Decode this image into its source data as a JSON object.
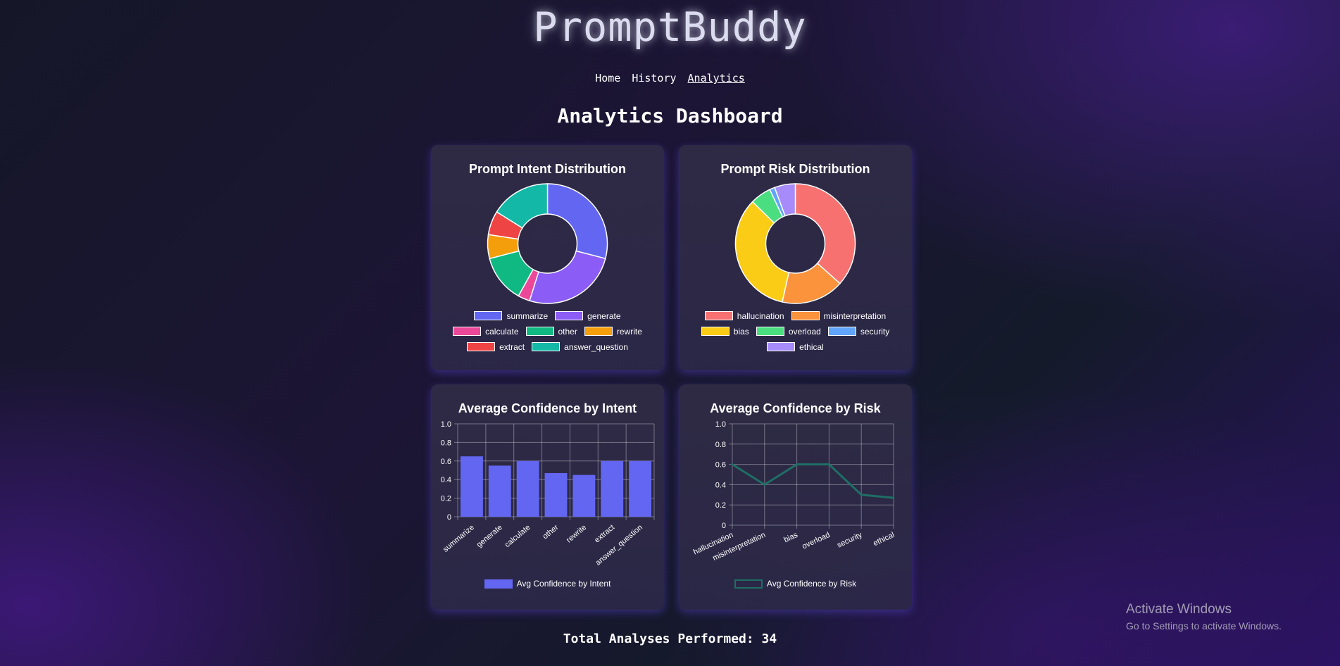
{
  "app": {
    "title": "PromptBuddy"
  },
  "nav": [
    {
      "label": "Home",
      "active": false
    },
    {
      "label": "History",
      "active": false
    },
    {
      "label": "Analytics",
      "active": true
    }
  ],
  "page": {
    "title": "Analytics Dashboard"
  },
  "footer": {
    "total_label": "Total Analyses Performed: 34"
  },
  "os_watermark": {
    "line1": "Activate Windows",
    "line2": "Go to Settings to activate Windows."
  },
  "chart_data": [
    {
      "id": "intent_dist",
      "type": "pie",
      "variant": "doughnut",
      "title": "Prompt Intent Distribution",
      "labels": [
        "summarize",
        "generate",
        "calculate",
        "other",
        "rewrite",
        "extract",
        "answer_question"
      ],
      "values": [
        9,
        8,
        1,
        4,
        2,
        2,
        5
      ],
      "colors": [
        "#6366f1",
        "#8b5cf6",
        "#ec4899",
        "#10b981",
        "#f59e0b",
        "#ef4444",
        "#14b8a6"
      ],
      "legend": "bottom"
    },
    {
      "id": "risk_dist",
      "type": "pie",
      "variant": "doughnut",
      "title": "Prompt Risk Distribution",
      "labels": [
        "hallucination",
        "misinterpretation",
        "bias",
        "overload",
        "security",
        "ethical"
      ],
      "values": [
        13,
        6,
        12,
        2,
        0.5,
        2
      ],
      "colors": [
        "#f87171",
        "#fb923c",
        "#facc15",
        "#4ade80",
        "#60a5fa",
        "#a78bfa"
      ],
      "legend": "bottom"
    },
    {
      "id": "intent_conf",
      "type": "bar",
      "title": "Average Confidence by Intent",
      "categories": [
        "summarize",
        "generate",
        "calculate",
        "other",
        "rewrite",
        "extract",
        "answer_question"
      ],
      "series": [
        {
          "name": "Avg Confidence by Intent",
          "values": [
            0.65,
            0.55,
            0.6,
            0.47,
            0.45,
            0.6,
            0.6
          ],
          "color": "#6366f1"
        }
      ],
      "ylim": [
        0,
        1
      ],
      "yticks": [
        "0",
        "0.2",
        "0.4",
        "0.6",
        "0.8",
        "1.0"
      ],
      "grid": true,
      "legend": "bottom"
    },
    {
      "id": "risk_conf",
      "type": "line",
      "title": "Average Confidence by Risk",
      "categories": [
        "hallucination",
        "misinterpretation",
        "bias",
        "overload",
        "security",
        "ethical"
      ],
      "series": [
        {
          "name": "Avg Confidence by Risk",
          "values": [
            0.6,
            0.4,
            0.6,
            0.6,
            0.3,
            0.27
          ],
          "color": "#1f6e66"
        }
      ],
      "ylim": [
        0,
        1
      ],
      "yticks": [
        "0",
        "0.2",
        "0.4",
        "0.6",
        "0.8",
        "1.0"
      ],
      "grid": true,
      "legend": "bottom"
    }
  ]
}
